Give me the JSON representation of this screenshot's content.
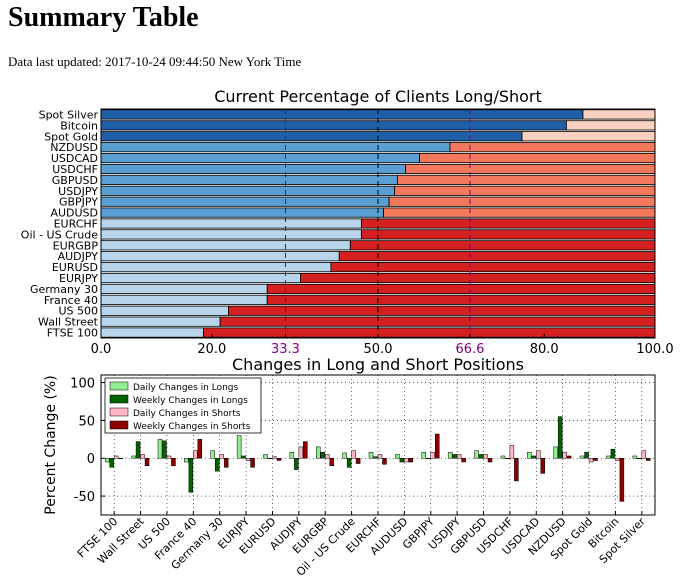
{
  "page": {
    "title": "Summary Table",
    "updated_label": "Data last updated: 2017-10-24 09:44:50 New York Time"
  },
  "chart_data": [
    {
      "type": "bar",
      "orientation": "horizontal-stacked",
      "title": "Current Percentage of Clients Long/Short",
      "xlim": [
        0,
        100
      ],
      "xticks": [
        "0.0",
        "20.0",
        "33.3",
        "50.0",
        "66.6",
        "80.0",
        "100.0"
      ],
      "reference_lines": [
        {
          "value": 33.3,
          "label": "33.3",
          "color": "#800080",
          "style": "dashed"
        },
        {
          "value": 50.0,
          "label": "50.0",
          "color": "#000000",
          "style": "dashed"
        },
        {
          "value": 66.6,
          "label": "66.6",
          "color": "#800080",
          "style": "dashed"
        }
      ],
      "categories": [
        "Spot Silver",
        "Bitcoin",
        "Spot Gold",
        "NZDUSD",
        "USDCAD",
        "USDCHF",
        "GBPUSD",
        "USDJPY",
        "GBPJPY",
        "AUDUSD",
        "EURCHF",
        "Oil - US Crude",
        "EURGBP",
        "AUDJPY",
        "EURUSD",
        "EURJPY",
        "Germany 30",
        "France 40",
        "US 500",
        "Wall Street",
        "FTSE 100"
      ],
      "long_pct": [
        87,
        84,
        76,
        63,
        57.5,
        55,
        53.5,
        53,
        52,
        51,
        47,
        47,
        45,
        43,
        41.5,
        36,
        30,
        30,
        23,
        21.5,
        18.5
      ],
      "colors": {
        "long_dark": "#1f5fa8",
        "long_mid": "#5a9fd4",
        "long_light": "#b8d4ea",
        "short_light": "#fcd0c0",
        "short_mid": "#f4785c",
        "short_dark": "#d42020",
        "edge": "#000000"
      },
      "grid": false
    },
    {
      "type": "bar",
      "title": "Changes in Long and Short Positions",
      "ylabel": "Percent Change (%)",
      "ylim": [
        -75,
        110
      ],
      "yticks": [
        100,
        50,
        0,
        -50
      ],
      "grid": true,
      "legend_position": "top-left",
      "categories": [
        "FTSE 100",
        "Wall Street",
        "US 500",
        "France 40",
        "Germany 30",
        "EURJPY",
        "EURUSD",
        "AUDJPY",
        "EURGBP",
        "Oil - US Crude",
        "EURCHF",
        "AUDUSD",
        "GBPJPY",
        "USDJPY",
        "GBPUSD",
        "USDCHF",
        "USDCAD",
        "NZDUSD",
        "Spot Gold",
        "Bitcoin",
        "Spot Silver"
      ],
      "series": [
        {
          "name": "Daily Changes in Longs",
          "color": "#90ee90",
          "values": [
            -5,
            3,
            25,
            -5,
            10,
            30,
            5,
            8,
            15,
            7,
            8,
            5,
            8,
            8,
            10,
            3,
            8,
            15,
            3,
            3,
            3
          ]
        },
        {
          "name": "Weekly Changes in Longs",
          "color": "#006400",
          "values": [
            -12,
            22,
            23,
            -45,
            -17,
            3,
            0,
            -15,
            8,
            -12,
            2,
            -5,
            0,
            5,
            5,
            0,
            3,
            55,
            8,
            12,
            0
          ]
        },
        {
          "name": "Daily Changes in Shorts",
          "color": "#ffb6c1",
          "values": [
            3,
            5,
            3,
            10,
            5,
            -3,
            2,
            15,
            5,
            10,
            5,
            -5,
            8,
            5,
            5,
            17,
            10,
            8,
            -5,
            -3,
            10
          ]
        },
        {
          "name": "Weekly Changes in Shorts",
          "color": "#8b0000",
          "values": [
            0,
            -10,
            -10,
            25,
            -12,
            -12,
            -3,
            22,
            -10,
            -7,
            -8,
            -5,
            32,
            -5,
            -5,
            -30,
            -20,
            3,
            -3,
            -57,
            -3
          ]
        }
      ]
    }
  ]
}
